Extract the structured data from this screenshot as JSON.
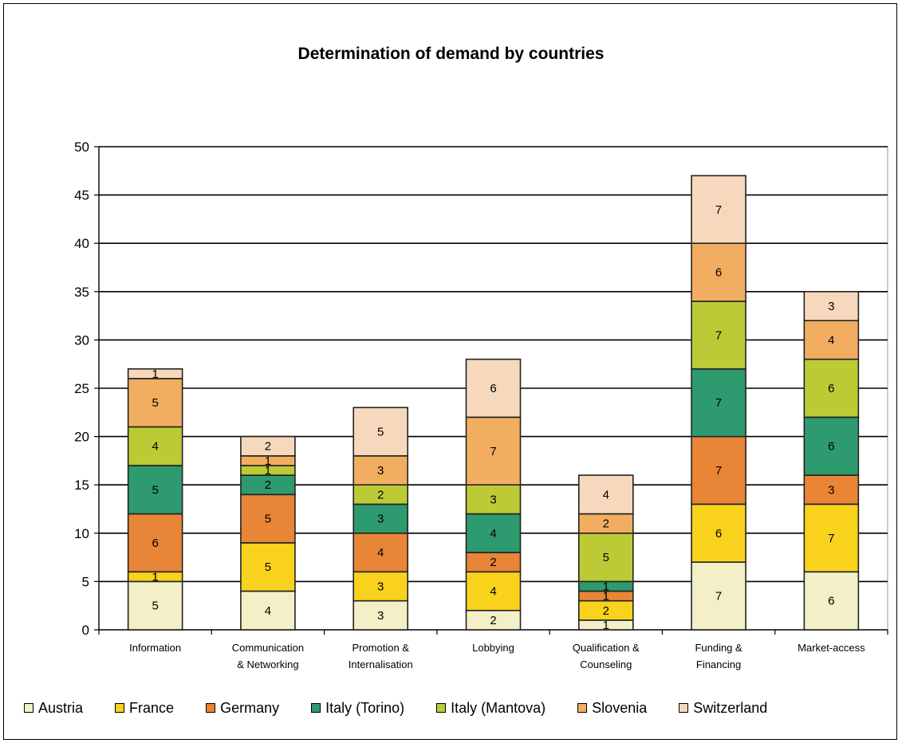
{
  "chart_data": {
    "type": "bar",
    "stacked": true,
    "title": "Determination of demand by countries",
    "xlabel": "",
    "ylabel": "",
    "ylim": [
      0,
      50
    ],
    "yticks": [
      "0",
      "5",
      "10",
      "15",
      "20",
      "25",
      "30",
      "35",
      "40",
      "45",
      "50"
    ],
    "grid": true,
    "legend_position": "bottom",
    "categories": [
      [
        "Information"
      ],
      [
        "Communication",
        "& Networking"
      ],
      [
        "Promotion &",
        "Internalisation"
      ],
      [
        "Lobbying"
      ],
      [
        "Qualification &",
        "Counseling"
      ],
      [
        "Funding &",
        "Financing"
      ],
      [
        "Market-access"
      ]
    ],
    "series": [
      {
        "name": "Austria",
        "color": "#F3EFC6",
        "values": [
          5,
          4,
          3,
          2,
          1,
          7,
          6
        ]
      },
      {
        "name": "France",
        "color": "#F8D21C",
        "values": [
          1,
          5,
          3,
          4,
          2,
          6,
          7
        ]
      },
      {
        "name": "Germany",
        "color": "#E88537",
        "values": [
          6,
          5,
          4,
          2,
          1,
          7,
          3
        ]
      },
      {
        "name": "Italy (Torino)",
        "color": "#2E9A6F",
        "values": [
          5,
          2,
          3,
          4,
          1,
          7,
          6
        ]
      },
      {
        "name": "Italy (Mantova)",
        "color": "#BCCB35",
        "values": [
          4,
          1,
          2,
          3,
          5,
          7,
          6
        ]
      },
      {
        "name": "Slovenia",
        "color": "#F2AE60",
        "values": [
          5,
          1,
          3,
          7,
          2,
          6,
          4
        ]
      },
      {
        "name": "Switzerland",
        "color": "#F6D9BC",
        "values": [
          1,
          2,
          5,
          6,
          4,
          7,
          3
        ]
      }
    ]
  }
}
